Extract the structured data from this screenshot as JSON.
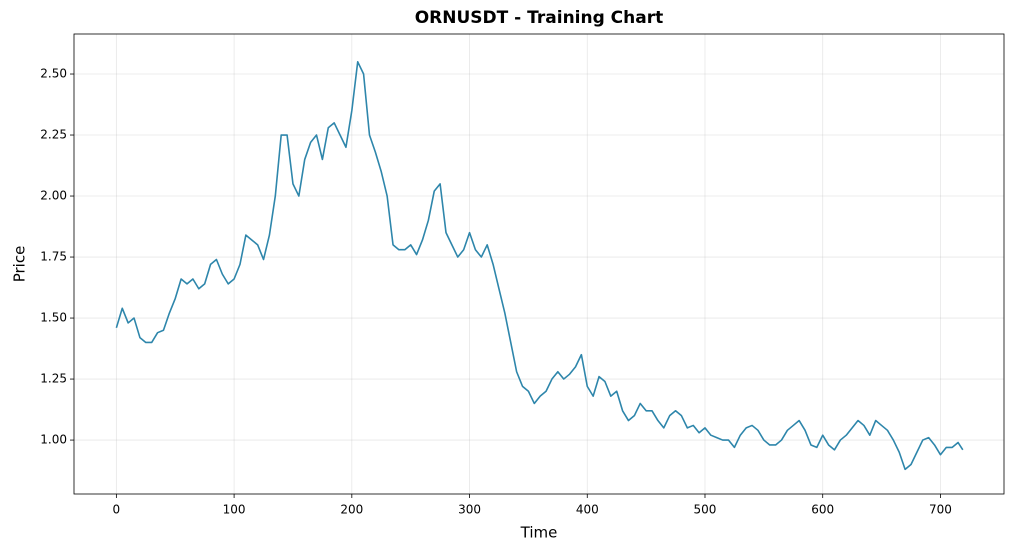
{
  "chart_data": {
    "type": "line",
    "title": "ORNUSDT - Training Chart",
    "xlabel": "Time",
    "ylabel": "Price",
    "x": [
      0,
      5,
      10,
      15,
      20,
      25,
      30,
      35,
      40,
      45,
      50,
      55,
      60,
      65,
      70,
      75,
      80,
      85,
      90,
      95,
      100,
      105,
      110,
      115,
      120,
      125,
      130,
      135,
      140,
      145,
      150,
      155,
      160,
      165,
      170,
      175,
      180,
      185,
      190,
      195,
      200,
      205,
      210,
      215,
      220,
      225,
      230,
      235,
      240,
      245,
      250,
      255,
      260,
      265,
      270,
      275,
      280,
      285,
      290,
      295,
      300,
      305,
      310,
      315,
      320,
      325,
      330,
      335,
      340,
      345,
      350,
      355,
      360,
      365,
      370,
      375,
      380,
      385,
      390,
      395,
      400,
      405,
      410,
      415,
      420,
      425,
      430,
      435,
      440,
      445,
      450,
      455,
      460,
      465,
      470,
      475,
      480,
      485,
      490,
      495,
      500,
      505,
      510,
      515,
      520,
      525,
      530,
      535,
      540,
      545,
      550,
      555,
      560,
      565,
      570,
      575,
      580,
      585,
      590,
      595,
      600,
      605,
      610,
      615,
      620,
      625,
      630,
      635,
      640,
      645,
      650,
      655,
      660,
      665,
      670,
      675,
      680,
      685,
      690,
      695,
      700,
      705,
      710,
      715,
      719
    ],
    "series": [
      {
        "name": "ORNUSDT",
        "color": "#2e86ab",
        "values": [
          1.46,
          1.54,
          1.48,
          1.5,
          1.42,
          1.4,
          1.4,
          1.44,
          1.45,
          1.52,
          1.58,
          1.66,
          1.64,
          1.66,
          1.62,
          1.64,
          1.72,
          1.74,
          1.68,
          1.64,
          1.66,
          1.72,
          1.84,
          1.82,
          1.8,
          1.74,
          1.84,
          2.0,
          2.25,
          2.25,
          2.05,
          2.0,
          2.15,
          2.22,
          2.25,
          2.15,
          2.28,
          2.3,
          2.25,
          2.2,
          2.35,
          2.55,
          2.5,
          2.25,
          2.18,
          2.1,
          2.0,
          1.8,
          1.78,
          1.78,
          1.8,
          1.76,
          1.82,
          1.9,
          2.02,
          2.05,
          1.85,
          1.8,
          1.75,
          1.78,
          1.85,
          1.78,
          1.75,
          1.8,
          1.72,
          1.62,
          1.52,
          1.4,
          1.28,
          1.22,
          1.2,
          1.15,
          1.18,
          1.2,
          1.25,
          1.28,
          1.25,
          1.27,
          1.3,
          1.35,
          1.22,
          1.18,
          1.26,
          1.24,
          1.18,
          1.2,
          1.12,
          1.08,
          1.1,
          1.15,
          1.12,
          1.12,
          1.08,
          1.05,
          1.1,
          1.12,
          1.1,
          1.05,
          1.06,
          1.03,
          1.05,
          1.02,
          1.01,
          1.0,
          1.0,
          0.97,
          1.02,
          1.05,
          1.06,
          1.04,
          1.0,
          0.98,
          0.98,
          1.0,
          1.04,
          1.06,
          1.08,
          1.04,
          0.98,
          0.97,
          1.02,
          0.98,
          0.96,
          1.0,
          1.02,
          1.05,
          1.08,
          1.06,
          1.02,
          1.08,
          1.06,
          1.04,
          1.0,
          0.95,
          0.88,
          0.9,
          0.95,
          1.0,
          1.01,
          0.98,
          0.94,
          0.97,
          0.97,
          0.99,
          0.96
        ]
      }
    ],
    "xlim": [
      -36,
      754
    ],
    "ylim": [
      0.779,
      2.664
    ],
    "xticks": [
      0,
      100,
      200,
      300,
      400,
      500,
      600,
      700
    ],
    "yticks": [
      {
        "value": 1,
        "label": "1.00"
      },
      {
        "value": 1.25,
        "label": "1.25"
      },
      {
        "value": 1.5,
        "label": "1.50"
      },
      {
        "value": 1.75,
        "label": "1.75"
      },
      {
        "value": 2,
        "label": "2.00"
      },
      {
        "value": 2.25,
        "label": "2.25"
      },
      {
        "value": 2.5,
        "label": "2.50"
      }
    ],
    "grid": true
  }
}
